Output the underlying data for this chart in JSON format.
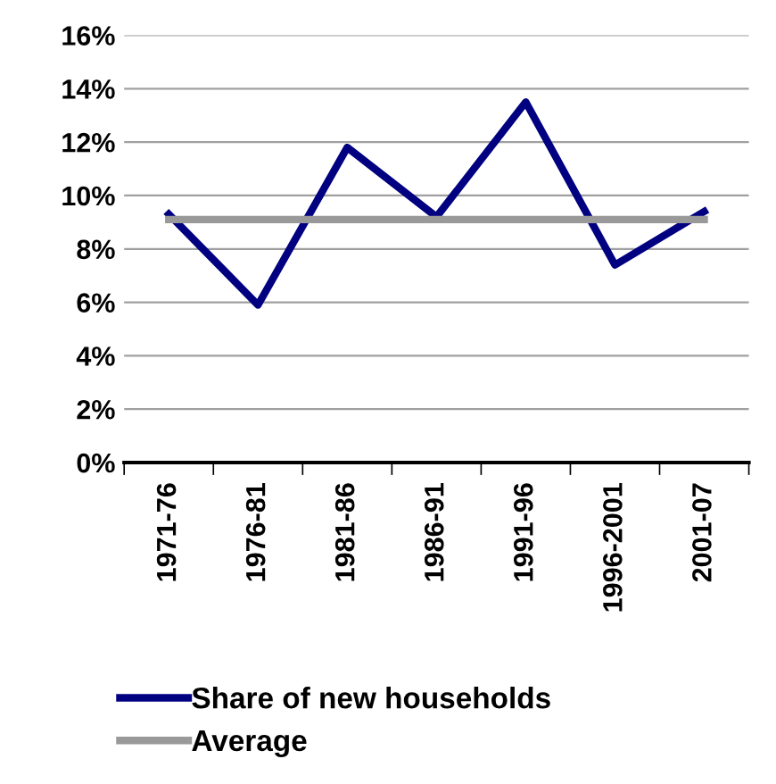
{
  "chart_data": {
    "type": "line",
    "categories": [
      "1971-76",
      "1976-81",
      "1981-86",
      "1986-91",
      "1991-96",
      "1996-2001",
      "2001-07"
    ],
    "series": [
      {
        "name": "Share of new households",
        "color": "#000080",
        "values": [
          9.3,
          5.9,
          11.8,
          9.2,
          13.5,
          7.4,
          9.4
        ]
      },
      {
        "name": "Average",
        "color": "#999999",
        "values": [
          9.1,
          9.1,
          9.1,
          9.1,
          9.1,
          9.1,
          9.1
        ]
      }
    ],
    "ylim": [
      0,
      16
    ],
    "yticks": [
      {
        "value": 0,
        "label": "0%"
      },
      {
        "value": 2,
        "label": "2%"
      },
      {
        "value": 4,
        "label": "4%"
      },
      {
        "value": 6,
        "label": "6%"
      },
      {
        "value": 8,
        "label": "8%"
      },
      {
        "value": 10,
        "label": "10%"
      },
      {
        "value": 12,
        "label": "12%"
      },
      {
        "value": 14,
        "label": "14%"
      },
      {
        "value": 16,
        "label": "16%"
      }
    ],
    "grid": "y",
    "legend": "bottom",
    "marker": "none",
    "line_style": "solid"
  }
}
